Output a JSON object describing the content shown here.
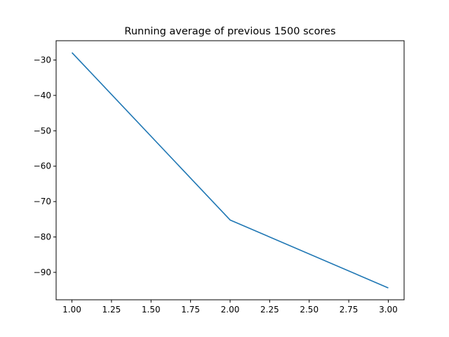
{
  "chart_data": {
    "type": "line",
    "title": "Running average of previous 1500 scores",
    "xlabel": "",
    "ylabel": "",
    "x": [
      1.0,
      2.0,
      3.0
    ],
    "series": [
      {
        "values": [
          -27.9,
          -75.2,
          -94.4
        ],
        "color": "#1f77b4"
      }
    ],
    "xlim": [
      0.9,
      3.1
    ],
    "ylim": [
      -97.75,
      -24.55
    ],
    "xticks": [
      1.0,
      1.25,
      1.5,
      1.75,
      2.0,
      2.25,
      2.5,
      2.75,
      3.0
    ],
    "xtick_labels": [
      "1.00",
      "1.25",
      "1.50",
      "1.75",
      "2.00",
      "2.25",
      "2.50",
      "2.75",
      "3.00"
    ],
    "yticks": [
      -30,
      -40,
      -50,
      -60,
      -70,
      -80,
      -90
    ],
    "ytick_labels": [
      "−30",
      "−40",
      "−50",
      "−60",
      "−70",
      "−80",
      "−90"
    ],
    "grid": false,
    "legend": "none"
  }
}
